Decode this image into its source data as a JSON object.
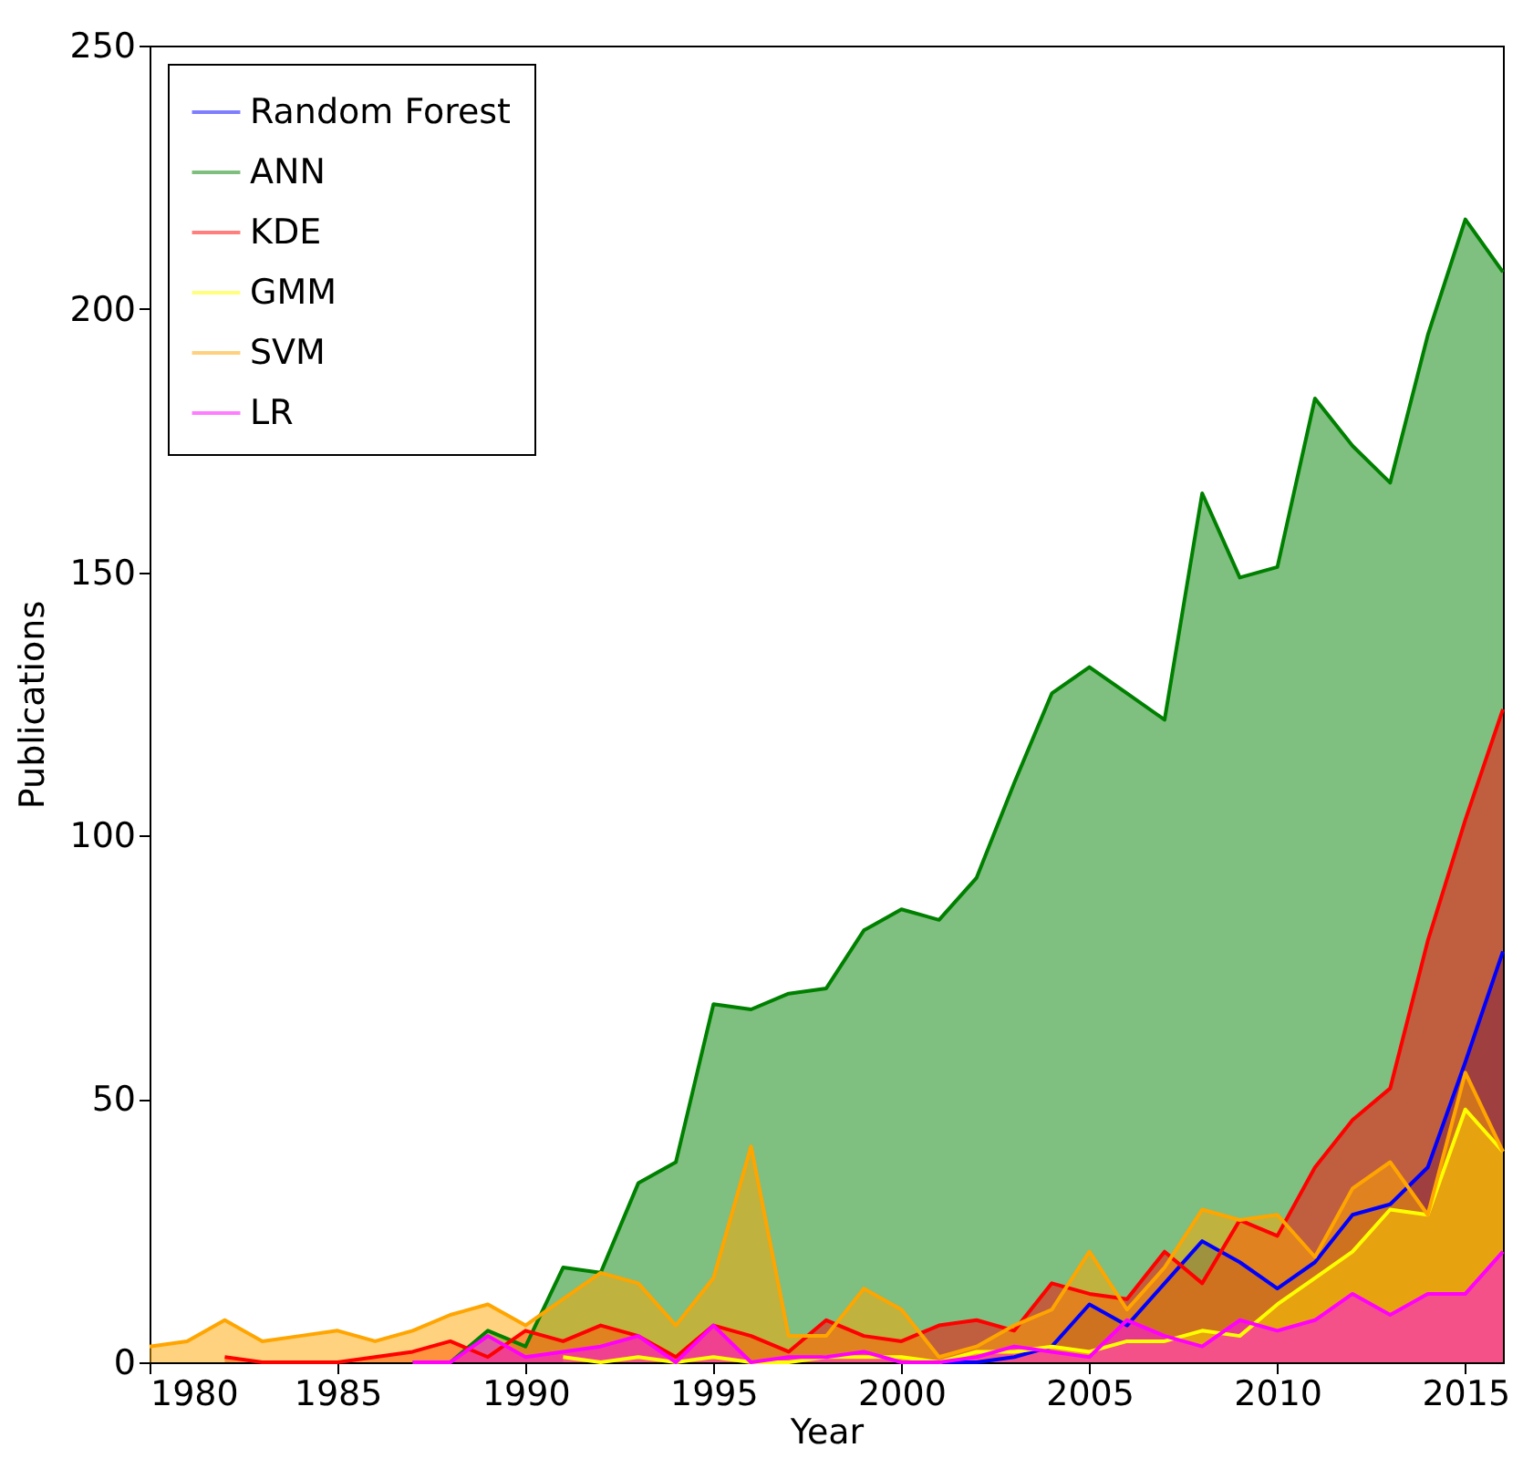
{
  "chart_data": {
    "type": "area",
    "xlabel": "Year",
    "ylabel": "Publications",
    "x": [
      1980,
      1981,
      1982,
      1983,
      1984,
      1985,
      1986,
      1987,
      1988,
      1989,
      1990,
      1991,
      1992,
      1993,
      1994,
      1995,
      1996,
      1997,
      1998,
      1999,
      2000,
      2001,
      2002,
      2003,
      2004,
      2005,
      2006,
      2007,
      2008,
      2009,
      2010,
      2011,
      2012,
      2013,
      2014,
      2015,
      2016
    ],
    "series": [
      {
        "name": "Random Forest",
        "color": "#0000ff",
        "values": [
          null,
          null,
          null,
          null,
          null,
          null,
          null,
          null,
          null,
          null,
          null,
          null,
          null,
          null,
          null,
          null,
          null,
          null,
          null,
          null,
          null,
          0,
          0,
          1,
          3,
          11,
          7,
          15,
          23,
          19,
          14,
          19,
          28,
          30,
          37,
          57,
          78
        ]
      },
      {
        "name": "ANN",
        "color": "#008000",
        "values": [
          null,
          null,
          null,
          null,
          null,
          null,
          null,
          0,
          0,
          6,
          3,
          18,
          17,
          34,
          38,
          68,
          67,
          70,
          71,
          82,
          86,
          84,
          92,
          110,
          127,
          132,
          127,
          122,
          165,
          149,
          151,
          183,
          174,
          167,
          195,
          217,
          207
        ]
      },
      {
        "name": "KDE",
        "color": "#ff0000",
        "values": [
          null,
          null,
          1,
          0,
          0,
          0,
          1,
          2,
          4,
          1,
          6,
          4,
          7,
          5,
          1,
          7,
          5,
          2,
          8,
          5,
          4,
          7,
          8,
          6,
          15,
          13,
          12,
          21,
          15,
          27,
          24,
          37,
          46,
          52,
          80,
          103,
          124
        ]
      },
      {
        "name": "GMM",
        "color": "#ffff00",
        "values": [
          null,
          null,
          null,
          null,
          null,
          null,
          null,
          null,
          null,
          null,
          null,
          1,
          0,
          1,
          0,
          1,
          0,
          0,
          1,
          1,
          1,
          0,
          2,
          2,
          3,
          2,
          4,
          4,
          6,
          5,
          11,
          16,
          21,
          29,
          28,
          48,
          40
        ]
      },
      {
        "name": "SVM",
        "color": "#ffa500",
        "values": [
          3,
          4,
          8,
          4,
          5,
          6,
          4,
          6,
          9,
          11,
          7,
          12,
          17,
          15,
          7,
          16,
          41,
          5,
          5,
          14,
          10,
          1,
          3,
          7,
          10,
          21,
          10,
          18,
          29,
          27,
          28,
          20,
          33,
          38,
          28,
          55,
          40
        ]
      },
      {
        "name": "LR",
        "color": "#ff00ff",
        "values": [
          null,
          null,
          null,
          null,
          null,
          null,
          null,
          0,
          0,
          5,
          1,
          2,
          3,
          5,
          0,
          7,
          0,
          1,
          1,
          2,
          0,
          0,
          1,
          3,
          2,
          1,
          8,
          5,
          3,
          8,
          6,
          8,
          13,
          9,
          13,
          13,
          21
        ]
      }
    ],
    "xlim": [
      1980,
      2016
    ],
    "xticks": [
      1980,
      1985,
      1990,
      1995,
      2000,
      2005,
      2010,
      2015
    ],
    "ylim": [
      0,
      250
    ],
    "yticks": [
      0,
      50,
      100,
      150,
      200,
      250
    ],
    "grid": false,
    "legend": "top left",
    "line_style": "solid"
  }
}
